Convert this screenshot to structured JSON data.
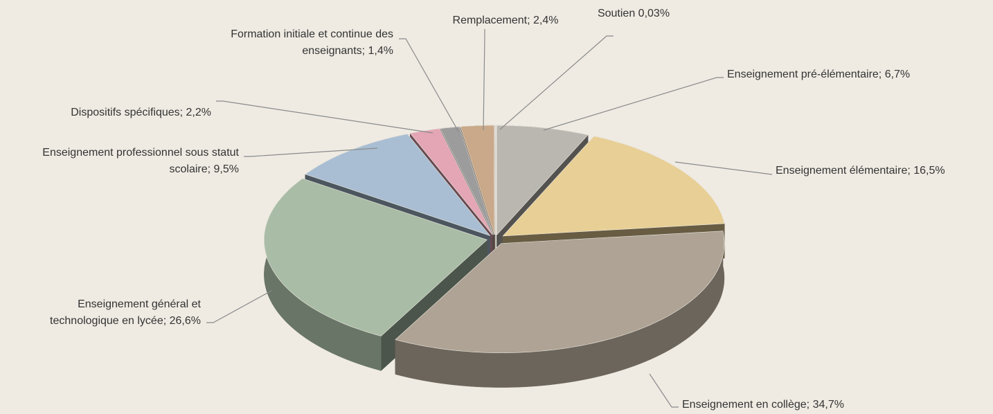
{
  "chart_data": {
    "type": "pie",
    "categories": [
      "Enseignement pré-élémentaire;",
      "Enseignement élémentaire;",
      "Enseignement en collège;",
      "Enseignement général et technologique en lycée;",
      "Enseignement professionnel sous statut scolaire;",
      "Dispositifs spécifiques;",
      "Formation initiale et continue des enseignants;",
      "Remplacement;",
      "Soutien"
    ],
    "values": [
      6.7,
      16.5,
      34.7,
      26.6,
      9.5,
      2.2,
      1.4,
      2.4,
      0.03
    ],
    "value_labels": [
      "6,7%",
      "16,5%",
      "34,7%",
      "26,6%",
      "9,5%",
      "2,2%",
      "1,4%",
      "2,4%",
      "0,03%"
    ],
    "colors": [
      "#b9b7b0",
      "#e8cf95",
      "#aea394",
      "#a9bca6",
      "#a9bed2",
      "#e4a5b5",
      "#9c9c9c",
      "#c9a98a",
      "#e2ded2"
    ]
  }
}
